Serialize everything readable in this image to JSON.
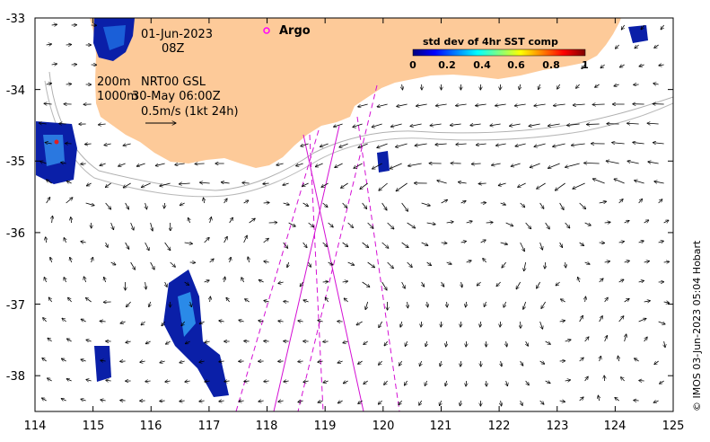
{
  "map": {
    "date": "01-Jun-2023",
    "time": "08Z",
    "depth_200": "200m",
    "product": "NRT00 GSL",
    "depth_1000": "1000m",
    "depth_1000_date": "30-May 06:00Z",
    "scale_label": "0.5m/s (1kt 24h)",
    "argo_label": "Argo",
    "credit": "© IMOS 03-Jun-2023 05:04 Hobart"
  },
  "colorbar": {
    "title": "std dev of 4hr SST comp",
    "ticks": [
      "0",
      "0.2",
      "0.4",
      "0.6",
      "0.8",
      "1"
    ],
    "stops": [
      "#00007f",
      "#0000ff",
      "#0080ff",
      "#00ffff",
      "#80ff80",
      "#ffff00",
      "#ff8000",
      "#ff0000",
      "#7f0000"
    ]
  },
  "axes": {
    "x_ticks": [
      "114",
      "115",
      "116",
      "117",
      "118",
      "119",
      "120",
      "121",
      "122",
      "123",
      "124",
      "125"
    ],
    "y_ticks": [
      "-33",
      "-34",
      "-35",
      "-36",
      "-37",
      "-38"
    ],
    "x_range": [
      114,
      125
    ],
    "y_range": [
      -38.5,
      -33
    ]
  },
  "colors": {
    "land": "#fdca99",
    "track": "#d40fd4",
    "argo_marker": "#ff00ff",
    "sst_low": "#0000a0",
    "sst_mid": "#0080ff",
    "contour": "#a0a0a0"
  }
}
